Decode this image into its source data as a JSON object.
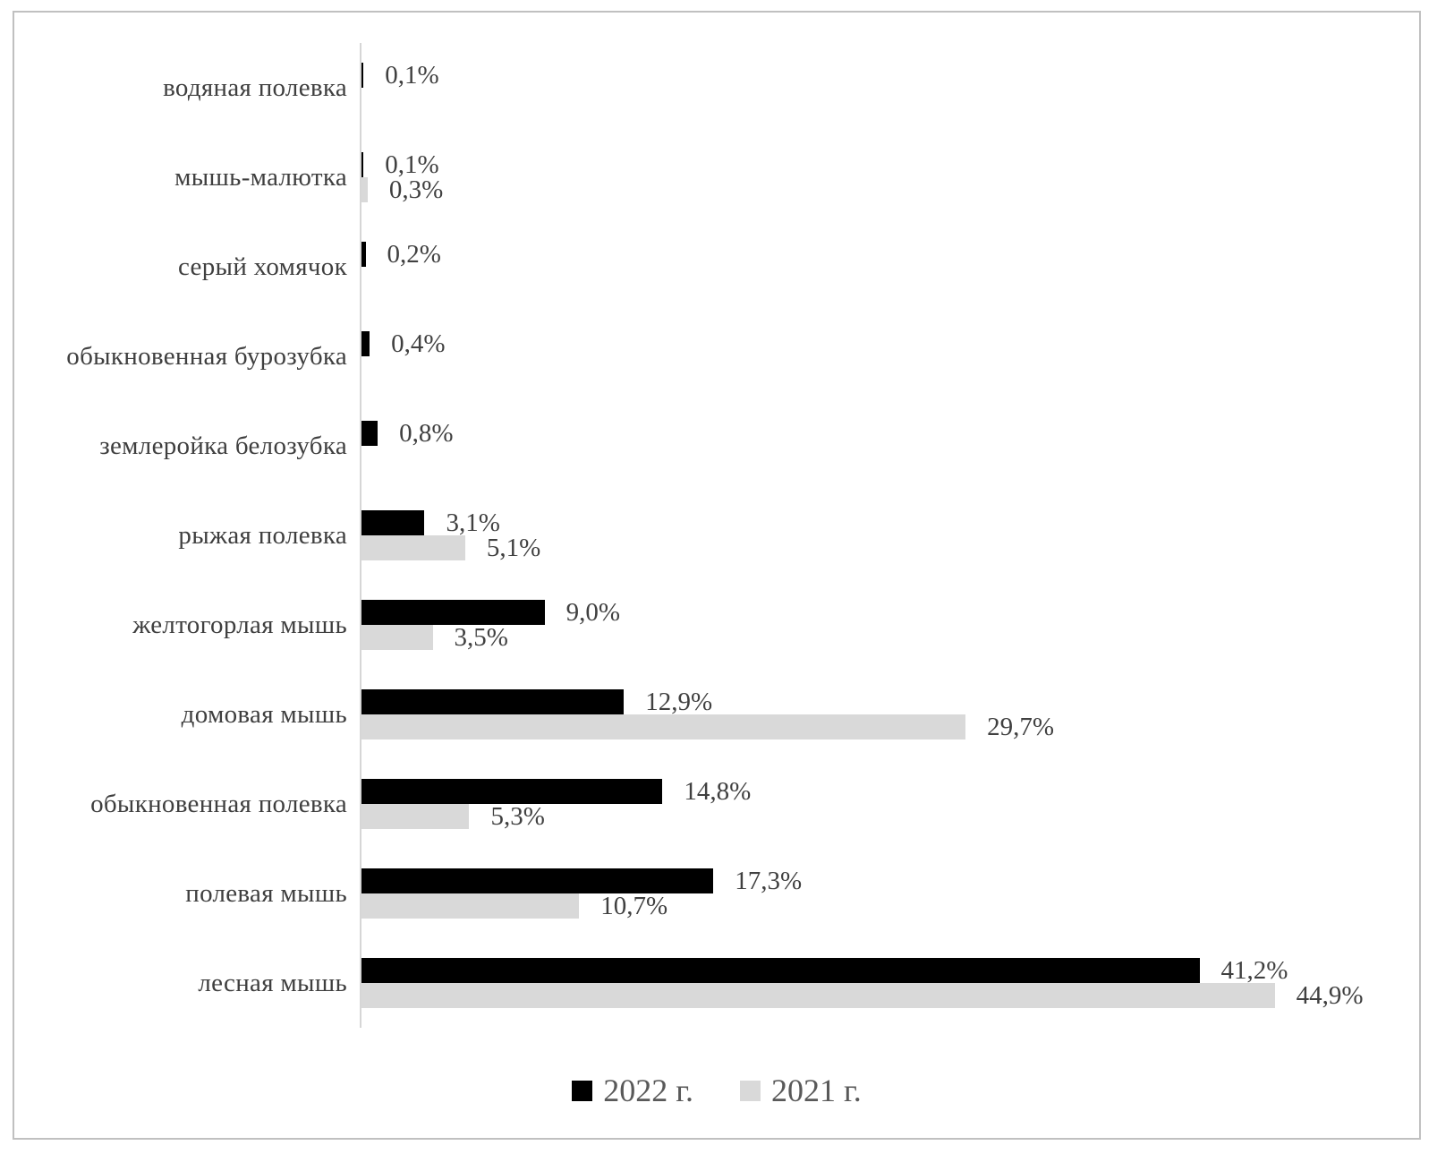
{
  "chart_data": {
    "type": "bar",
    "orientation": "horizontal",
    "title": "",
    "xlabel": "",
    "ylabel": "",
    "grid": false,
    "axis_ticks_visible": false,
    "xlim": [
      0,
      52
    ],
    "value_suffix": "%",
    "decimal_separator": ",",
    "legend_position": "bottom",
    "categories_top_to_bottom": [
      "водяная полевка",
      "мышь-малютка",
      "серый хомячок",
      "обыкновенная бурозубка",
      "землеройка белозубка",
      "рыжая полевка",
      "желтогорлая мышь",
      "домовая мышь",
      "обыкновенная полевка",
      "полевая мышь",
      "лесная мышь"
    ],
    "series": [
      {
        "name": "2022 г.",
        "color": "#000000",
        "values": [
          0.1,
          0.1,
          0.2,
          0.4,
          0.8,
          3.1,
          9.0,
          12.9,
          14.8,
          17.3,
          41.2
        ],
        "labels": [
          "0,1%",
          "0,1%",
          "0,2%",
          "0,4%",
          "0,8%",
          "3,1%",
          "9,0%",
          "12,9%",
          "14,8%",
          "17,3%",
          "41,2%"
        ]
      },
      {
        "name": "2021 г.",
        "color": "#d9d9d9",
        "values": [
          0,
          0.3,
          0,
          0,
          0,
          5.1,
          3.5,
          29.7,
          5.3,
          10.7,
          44.9
        ],
        "labels": [
          "",
          "0,3%",
          "",
          "",
          "",
          "5,1%",
          "3,5%",
          "29,7%",
          "5,3%",
          "10,7%",
          "44,9%"
        ]
      }
    ]
  },
  "legend": {
    "items": [
      {
        "label": "2022 г.",
        "color": "#000000"
      },
      {
        "label": "2021 г.",
        "color": "#d9d9d9"
      }
    ]
  },
  "colors": {
    "frame_border": "#c0c0c0",
    "axis_line": "#d6d6d6",
    "category_text": "#3f3f3f",
    "value_text": "#404040",
    "legend_text": "#595959",
    "background": "#ffffff"
  }
}
